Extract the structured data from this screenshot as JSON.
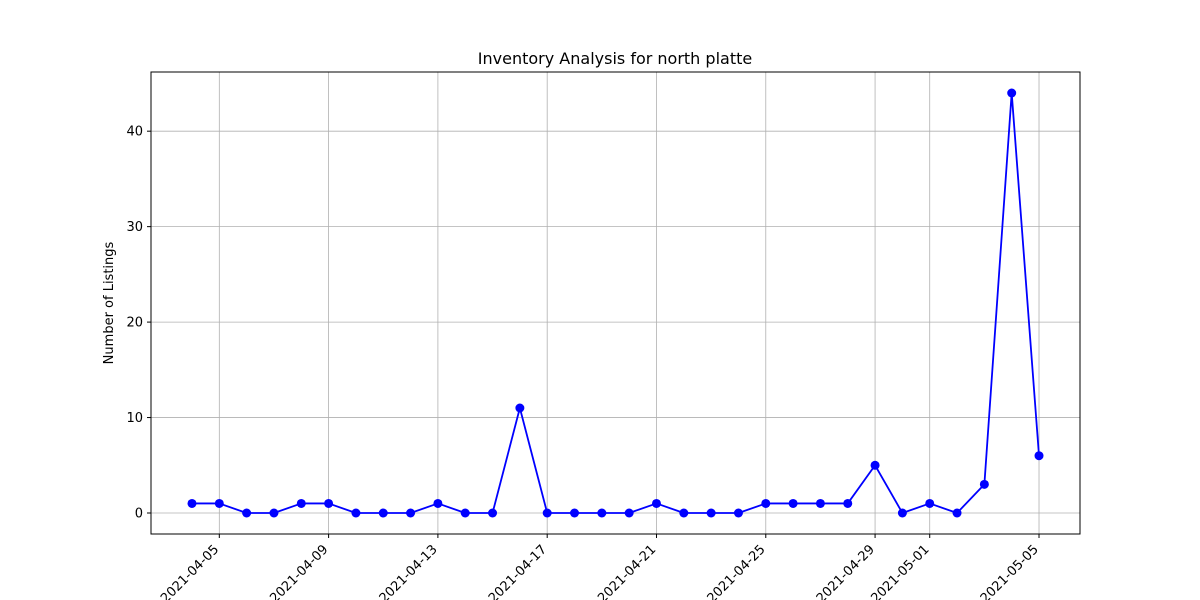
{
  "chart_data": {
    "type": "line",
    "title": "Inventory Analysis for north platte",
    "xlabel": "",
    "ylabel": "Number of Listings",
    "x": [
      "2021-04-04",
      "2021-04-05",
      "2021-04-06",
      "2021-04-07",
      "2021-04-08",
      "2021-04-09",
      "2021-04-10",
      "2021-04-11",
      "2021-04-12",
      "2021-04-13",
      "2021-04-14",
      "2021-04-15",
      "2021-04-16",
      "2021-04-17",
      "2021-04-18",
      "2021-04-19",
      "2021-04-20",
      "2021-04-21",
      "2021-04-22",
      "2021-04-23",
      "2021-04-24",
      "2021-04-25",
      "2021-04-26",
      "2021-04-27",
      "2021-04-28",
      "2021-04-29",
      "2021-04-30",
      "2021-05-01",
      "2021-05-02",
      "2021-05-03",
      "2021-05-04",
      "2021-05-05"
    ],
    "values": [
      1,
      1,
      0,
      0,
      1,
      1,
      0,
      0,
      0,
      1,
      0,
      0,
      11,
      0,
      0,
      0,
      0,
      1,
      0,
      0,
      0,
      1,
      1,
      1,
      1,
      5,
      0,
      1,
      0,
      3,
      44,
      6
    ],
    "xticks": [
      "2021-04-05",
      "2021-04-09",
      "2021-04-13",
      "2021-04-17",
      "2021-04-21",
      "2021-04-25",
      "2021-04-29",
      "2021-05-01",
      "2021-05-05"
    ],
    "yticks": [
      0,
      10,
      20,
      30,
      40
    ],
    "xlim": [
      "2021-04-02.5",
      "2021-05-06.5"
    ],
    "ylim": [
      -2.2,
      46.2
    ],
    "grid": true,
    "color": "#0000ff",
    "marker": "circle"
  }
}
